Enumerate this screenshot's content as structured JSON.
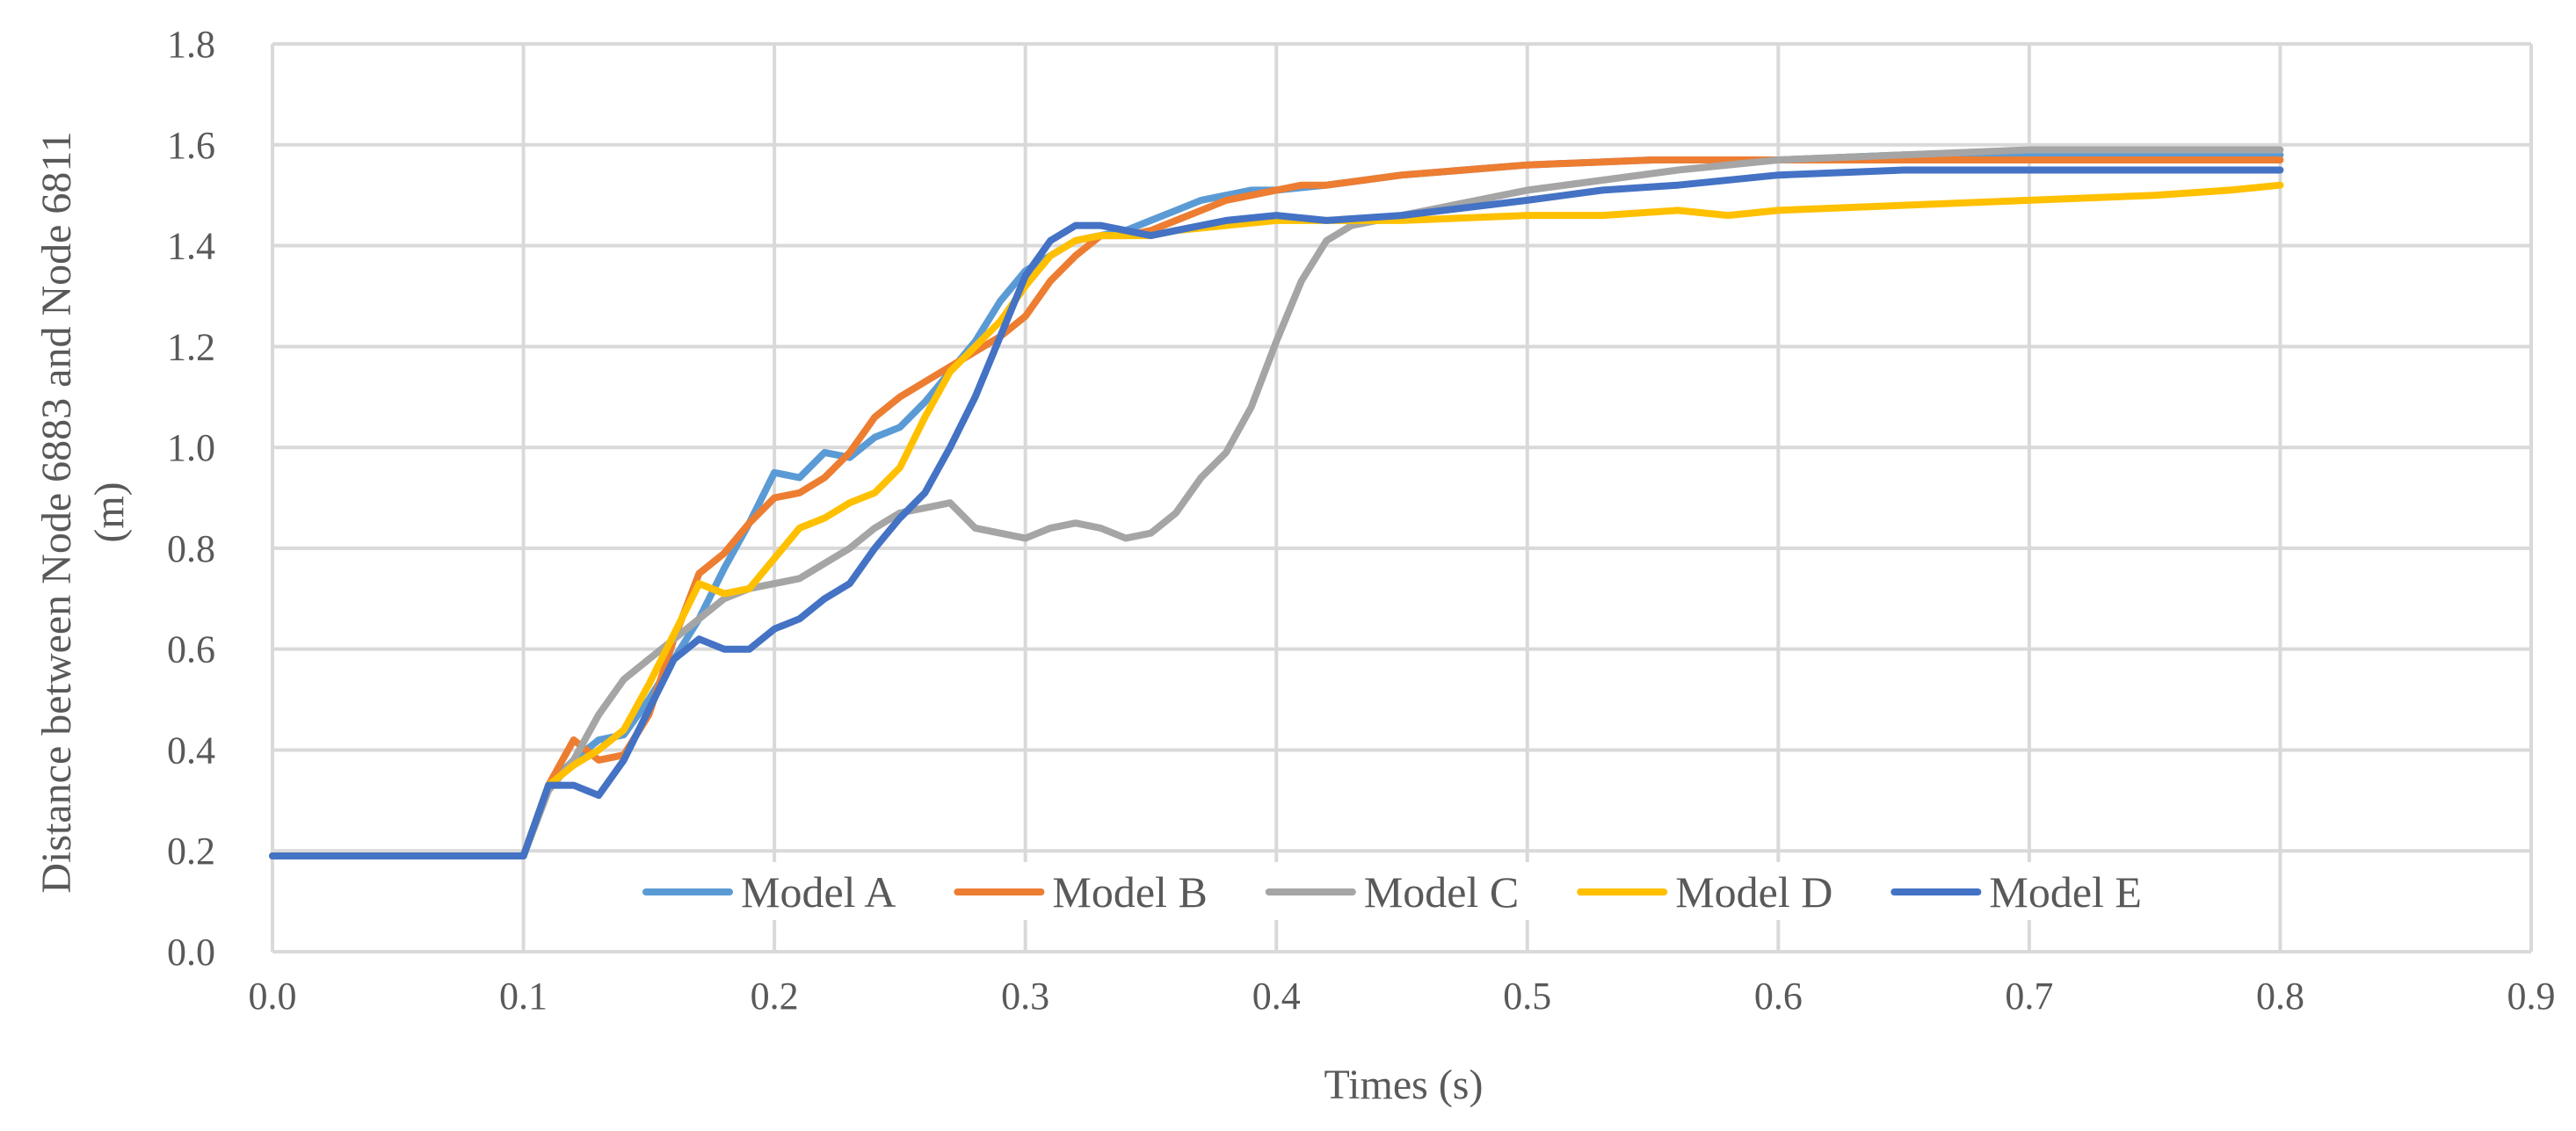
{
  "chart_data": {
    "type": "line",
    "title": "",
    "xlabel": "Times (s)",
    "ylabel_lines": [
      "Distance between Node 6883 and Node 6811",
      "(m)"
    ],
    "xlim": [
      0,
      0.9
    ],
    "ylim": [
      0,
      1.8
    ],
    "x_ticks": [
      "0.0",
      "0.1",
      "0.2",
      "0.3",
      "0.4",
      "0.5",
      "0.6",
      "0.7",
      "0.8",
      "0.9"
    ],
    "y_ticks": [
      "0.0",
      "0.2",
      "0.4",
      "0.6",
      "0.8",
      "1.0",
      "1.2",
      "1.4",
      "1.6",
      "1.8"
    ],
    "grid": true,
    "legend_position": "bottom-inside",
    "series": [
      {
        "name": "Model A",
        "color": "#5b9bd5",
        "points": [
          [
            0,
            0.19
          ],
          [
            0.1,
            0.19
          ],
          [
            0.11,
            0.33
          ],
          [
            0.12,
            0.38
          ],
          [
            0.13,
            0.42
          ],
          [
            0.14,
            0.43
          ],
          [
            0.15,
            0.5
          ],
          [
            0.16,
            0.58
          ],
          [
            0.17,
            0.66
          ],
          [
            0.18,
            0.76
          ],
          [
            0.19,
            0.85
          ],
          [
            0.2,
            0.95
          ],
          [
            0.21,
            0.94
          ],
          [
            0.22,
            0.99
          ],
          [
            0.23,
            0.98
          ],
          [
            0.24,
            1.02
          ],
          [
            0.25,
            1.04
          ],
          [
            0.26,
            1.09
          ],
          [
            0.27,
            1.15
          ],
          [
            0.28,
            1.21
          ],
          [
            0.29,
            1.29
          ],
          [
            0.3,
            1.35
          ],
          [
            0.31,
            1.38
          ],
          [
            0.32,
            1.41
          ],
          [
            0.33,
            1.42
          ],
          [
            0.34,
            1.43
          ],
          [
            0.35,
            1.45
          ],
          [
            0.36,
            1.47
          ],
          [
            0.37,
            1.49
          ],
          [
            0.38,
            1.5
          ],
          [
            0.39,
            1.51
          ],
          [
            0.4,
            1.51
          ],
          [
            0.42,
            1.52
          ],
          [
            0.45,
            1.54
          ],
          [
            0.5,
            1.56
          ],
          [
            0.55,
            1.57
          ],
          [
            0.6,
            1.57
          ],
          [
            0.65,
            1.58
          ],
          [
            0.7,
            1.58
          ],
          [
            0.75,
            1.58
          ],
          [
            0.8,
            1.58
          ]
        ]
      },
      {
        "name": "Model B",
        "color": "#ed7d31",
        "points": [
          [
            0,
            0.19
          ],
          [
            0.1,
            0.19
          ],
          [
            0.11,
            0.33
          ],
          [
            0.12,
            0.42
          ],
          [
            0.13,
            0.38
          ],
          [
            0.14,
            0.39
          ],
          [
            0.15,
            0.47
          ],
          [
            0.16,
            0.62
          ],
          [
            0.17,
            0.75
          ],
          [
            0.18,
            0.79
          ],
          [
            0.19,
            0.85
          ],
          [
            0.2,
            0.9
          ],
          [
            0.21,
            0.91
          ],
          [
            0.22,
            0.94
          ],
          [
            0.23,
            0.99
          ],
          [
            0.24,
            1.06
          ],
          [
            0.25,
            1.1
          ],
          [
            0.26,
            1.13
          ],
          [
            0.27,
            1.16
          ],
          [
            0.28,
            1.19
          ],
          [
            0.29,
            1.22
          ],
          [
            0.3,
            1.26
          ],
          [
            0.31,
            1.33
          ],
          [
            0.32,
            1.38
          ],
          [
            0.33,
            1.42
          ],
          [
            0.34,
            1.42
          ],
          [
            0.35,
            1.43
          ],
          [
            0.36,
            1.45
          ],
          [
            0.37,
            1.47
          ],
          [
            0.38,
            1.49
          ],
          [
            0.39,
            1.5
          ],
          [
            0.4,
            1.51
          ],
          [
            0.41,
            1.52
          ],
          [
            0.42,
            1.52
          ],
          [
            0.45,
            1.54
          ],
          [
            0.5,
            1.56
          ],
          [
            0.55,
            1.57
          ],
          [
            0.6,
            1.57
          ],
          [
            0.65,
            1.57
          ],
          [
            0.7,
            1.57
          ],
          [
            0.75,
            1.57
          ],
          [
            0.8,
            1.57
          ]
        ]
      },
      {
        "name": "Model C",
        "color": "#a5a5a5",
        "points": [
          [
            0,
            0.19
          ],
          [
            0.1,
            0.19
          ],
          [
            0.11,
            0.32
          ],
          [
            0.12,
            0.38
          ],
          [
            0.13,
            0.47
          ],
          [
            0.14,
            0.54
          ],
          [
            0.15,
            0.58
          ],
          [
            0.16,
            0.62
          ],
          [
            0.17,
            0.66
          ],
          [
            0.18,
            0.7
          ],
          [
            0.19,
            0.72
          ],
          [
            0.2,
            0.73
          ],
          [
            0.21,
            0.74
          ],
          [
            0.22,
            0.77
          ],
          [
            0.23,
            0.8
          ],
          [
            0.24,
            0.84
          ],
          [
            0.25,
            0.87
          ],
          [
            0.26,
            0.88
          ],
          [
            0.27,
            0.89
          ],
          [
            0.28,
            0.84
          ],
          [
            0.29,
            0.83
          ],
          [
            0.3,
            0.82
          ],
          [
            0.31,
            0.84
          ],
          [
            0.32,
            0.85
          ],
          [
            0.33,
            0.84
          ],
          [
            0.34,
            0.82
          ],
          [
            0.35,
            0.83
          ],
          [
            0.36,
            0.87
          ],
          [
            0.37,
            0.94
          ],
          [
            0.38,
            0.99
          ],
          [
            0.39,
            1.08
          ],
          [
            0.4,
            1.21
          ],
          [
            0.41,
            1.33
          ],
          [
            0.42,
            1.41
          ],
          [
            0.43,
            1.44
          ],
          [
            0.44,
            1.45
          ],
          [
            0.45,
            1.46
          ],
          [
            0.46,
            1.47
          ],
          [
            0.48,
            1.49
          ],
          [
            0.5,
            1.51
          ],
          [
            0.53,
            1.53
          ],
          [
            0.56,
            1.55
          ],
          [
            0.6,
            1.57
          ],
          [
            0.65,
            1.58
          ],
          [
            0.7,
            1.59
          ],
          [
            0.75,
            1.59
          ],
          [
            0.8,
            1.59
          ]
        ]
      },
      {
        "name": "Model D",
        "color": "#ffc000",
        "points": [
          [
            0,
            0.19
          ],
          [
            0.1,
            0.19
          ],
          [
            0.11,
            0.33
          ],
          [
            0.12,
            0.37
          ],
          [
            0.13,
            0.4
          ],
          [
            0.14,
            0.44
          ],
          [
            0.15,
            0.53
          ],
          [
            0.16,
            0.63
          ],
          [
            0.17,
            0.73
          ],
          [
            0.18,
            0.71
          ],
          [
            0.19,
            0.72
          ],
          [
            0.2,
            0.78
          ],
          [
            0.21,
            0.84
          ],
          [
            0.22,
            0.86
          ],
          [
            0.23,
            0.89
          ],
          [
            0.24,
            0.91
          ],
          [
            0.25,
            0.96
          ],
          [
            0.26,
            1.06
          ],
          [
            0.27,
            1.15
          ],
          [
            0.28,
            1.2
          ],
          [
            0.29,
            1.25
          ],
          [
            0.3,
            1.32
          ],
          [
            0.31,
            1.38
          ],
          [
            0.32,
            1.41
          ],
          [
            0.33,
            1.42
          ],
          [
            0.34,
            1.42
          ],
          [
            0.35,
            1.42
          ],
          [
            0.36,
            1.43
          ],
          [
            0.38,
            1.44
          ],
          [
            0.4,
            1.45
          ],
          [
            0.45,
            1.45
          ],
          [
            0.5,
            1.46
          ],
          [
            0.53,
            1.46
          ],
          [
            0.56,
            1.47
          ],
          [
            0.58,
            1.46
          ],
          [
            0.6,
            1.47
          ],
          [
            0.65,
            1.48
          ],
          [
            0.7,
            1.49
          ],
          [
            0.75,
            1.5
          ],
          [
            0.78,
            1.51
          ],
          [
            0.8,
            1.52
          ]
        ]
      },
      {
        "name": "Model E",
        "color": "#4472c4",
        "points": [
          [
            0,
            0.19
          ],
          [
            0.1,
            0.19
          ],
          [
            0.11,
            0.33
          ],
          [
            0.12,
            0.33
          ],
          [
            0.13,
            0.31
          ],
          [
            0.14,
            0.38
          ],
          [
            0.15,
            0.48
          ],
          [
            0.16,
            0.58
          ],
          [
            0.17,
            0.62
          ],
          [
            0.18,
            0.6
          ],
          [
            0.19,
            0.6
          ],
          [
            0.2,
            0.64
          ],
          [
            0.21,
            0.66
          ],
          [
            0.22,
            0.7
          ],
          [
            0.23,
            0.73
          ],
          [
            0.24,
            0.8
          ],
          [
            0.25,
            0.86
          ],
          [
            0.26,
            0.91
          ],
          [
            0.27,
            1.0
          ],
          [
            0.28,
            1.1
          ],
          [
            0.29,
            1.22
          ],
          [
            0.3,
            1.34
          ],
          [
            0.31,
            1.41
          ],
          [
            0.32,
            1.44
          ],
          [
            0.33,
            1.44
          ],
          [
            0.34,
            1.43
          ],
          [
            0.35,
            1.42
          ],
          [
            0.36,
            1.43
          ],
          [
            0.38,
            1.45
          ],
          [
            0.4,
            1.46
          ],
          [
            0.42,
            1.45
          ],
          [
            0.45,
            1.46
          ],
          [
            0.5,
            1.49
          ],
          [
            0.53,
            1.51
          ],
          [
            0.56,
            1.52
          ],
          [
            0.6,
            1.54
          ],
          [
            0.65,
            1.55
          ],
          [
            0.7,
            1.55
          ],
          [
            0.75,
            1.55
          ],
          [
            0.8,
            1.55
          ]
        ]
      }
    ]
  }
}
